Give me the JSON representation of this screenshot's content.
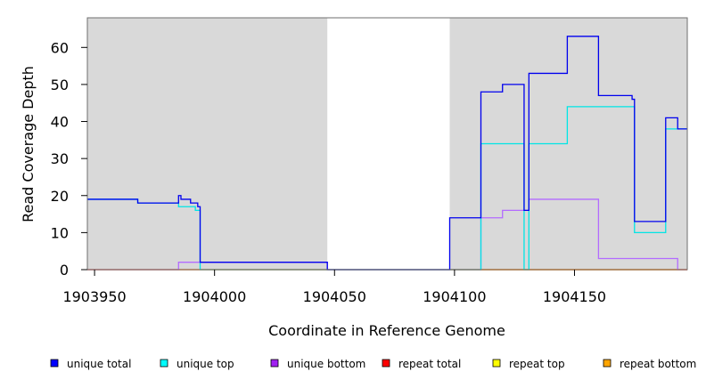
{
  "chart_data": {
    "type": "line",
    "title": "",
    "xlabel": "Coordinate in Reference Genome",
    "ylabel": "Read Coverage Depth",
    "xlim": [
      1903947,
      1904197
    ],
    "ylim": [
      0,
      68
    ],
    "xticks": [
      1903950,
      1904000,
      1904050,
      1904100,
      1904150
    ],
    "yticks": [
      0,
      10,
      20,
      30,
      40,
      50,
      60
    ],
    "shaded_regions": [
      [
        1903947,
        1904047
      ],
      [
        1904098,
        1904197
      ]
    ],
    "shade_color": "#d9d9d9",
    "grid": false,
    "legend_placement": "bottom",
    "series": [
      {
        "name": "unique total",
        "color": "#0000ee",
        "x": [
          1903947,
          1903968,
          1903968,
          1903985,
          1903985,
          1903986,
          1903986,
          1903990,
          1903990,
          1903993,
          1903993,
          1903994,
          1903994,
          1904047,
          1904047,
          1904098,
          1904098,
          1904111,
          1904111,
          1904120,
          1904120,
          1904129,
          1904129,
          1904131,
          1904131,
          1904147,
          1904147,
          1904160,
          1904160,
          1904174,
          1904174,
          1904175,
          1904175,
          1904188,
          1904188,
          1904193,
          1904193,
          1904197
        ],
        "values": [
          19,
          19,
          18,
          18,
          20,
          20,
          19,
          19,
          18,
          18,
          17,
          17,
          2,
          2,
          0,
          0,
          14,
          14,
          48,
          48,
          50,
          50,
          16,
          16,
          53,
          53,
          63,
          63,
          47,
          47,
          46,
          46,
          13,
          13,
          41,
          41,
          38,
          38
        ]
      },
      {
        "name": "unique top",
        "color": "#00e5e5",
        "x": [
          1903947,
          1903968,
          1903968,
          1903985,
          1903985,
          1903992,
          1903992,
          1903994,
          1903994,
          1904047,
          1904047,
          1904111,
          1904111,
          1904129,
          1904129,
          1904131,
          1904131,
          1904147,
          1904147,
          1904175,
          1904175,
          1904188,
          1904188,
          1904197
        ],
        "values": [
          19,
          19,
          18,
          18,
          17,
          17,
          16,
          16,
          0,
          0,
          0,
          0,
          34,
          34,
          0,
          0,
          34,
          34,
          44,
          44,
          10,
          10,
          38,
          38
        ]
      },
      {
        "name": "unique bottom",
        "color": "#b36bff",
        "x": [
          1903947,
          1903985,
          1903985,
          1904047,
          1904047,
          1904111,
          1904111,
          1904120,
          1904120,
          1904131,
          1904131,
          1904160,
          1904160,
          1904193,
          1904193,
          1904197
        ],
        "values": [
          0,
          0,
          2,
          2,
          0,
          0,
          14,
          14,
          16,
          16,
          19,
          19,
          3,
          3,
          0,
          0
        ]
      },
      {
        "name": "repeat total",
        "color": "#ff0000",
        "x": [
          1903947,
          1904197
        ],
        "values": [
          0,
          0
        ]
      },
      {
        "name": "repeat top",
        "color": "#ffff00",
        "x": [
          1903947,
          1904197
        ],
        "values": [
          0,
          0
        ]
      },
      {
        "name": "repeat bottom",
        "color": "#ffa500",
        "x": [
          1904098,
          1904197
        ],
        "values": [
          0,
          0
        ]
      }
    ]
  },
  "legend": {
    "items": [
      {
        "label": "unique total",
        "color": "#0000ff"
      },
      {
        "label": "unique top",
        "color": "#00ffff"
      },
      {
        "label": "unique bottom",
        "color": "#a020f0"
      },
      {
        "label": "repeat total",
        "color": "#ff0000"
      },
      {
        "label": "repeat top",
        "color": "#ffff00"
      },
      {
        "label": "repeat bottom",
        "color": "#ffa500"
      }
    ]
  }
}
